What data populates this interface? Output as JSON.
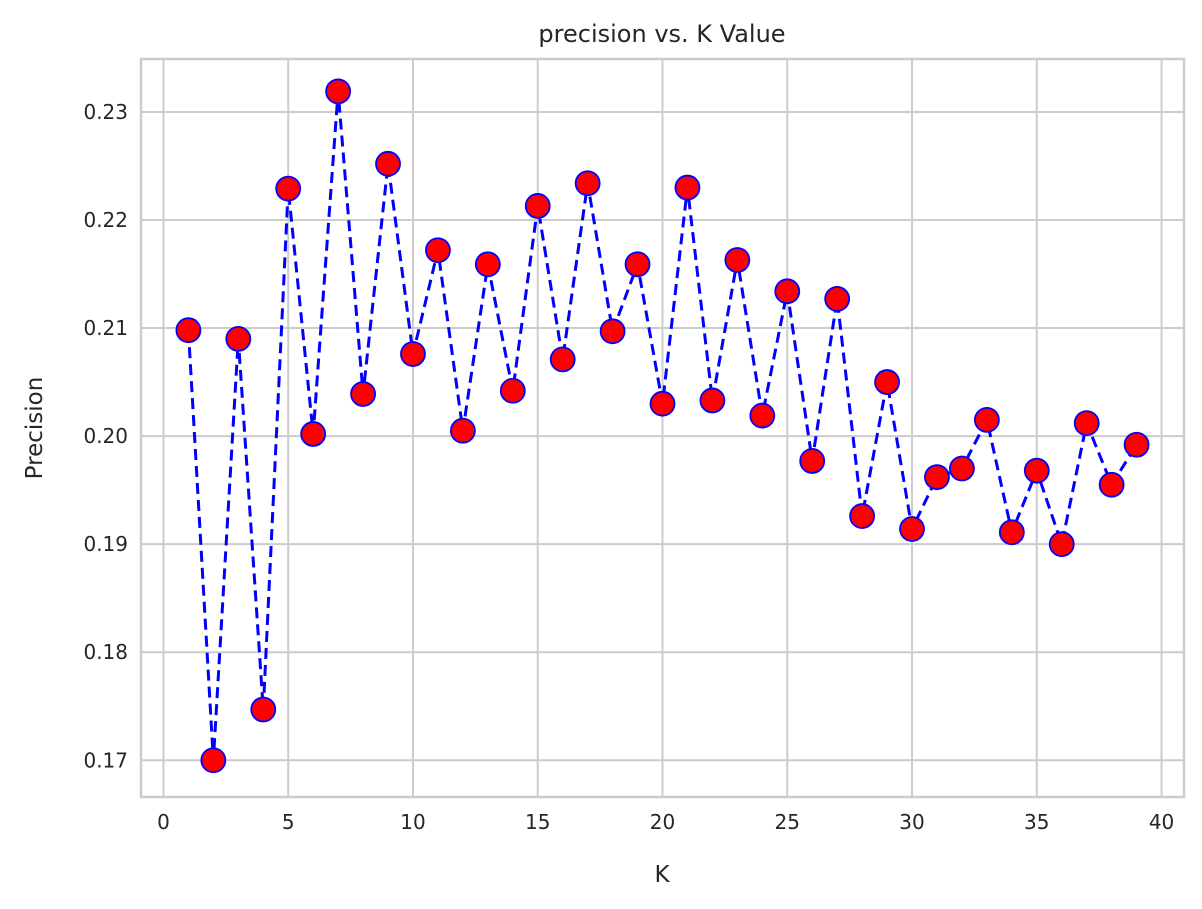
{
  "chart_data": {
    "type": "line",
    "title": "precision vs. K Value",
    "xlabel": "K",
    "ylabel": "Precision",
    "xlim": [
      -0.9,
      40.9
    ],
    "ylim": [
      0.1666,
      0.2349
    ],
    "xticks": [
      0,
      5,
      10,
      15,
      20,
      25,
      30,
      35,
      40
    ],
    "yticks": [
      0.17,
      0.18,
      0.19,
      0.2,
      0.21,
      0.22,
      0.23
    ],
    "ytick_labels": [
      "0.17",
      "0.18",
      "0.19",
      "0.20",
      "0.21",
      "0.22",
      "0.23"
    ],
    "grid": true,
    "line_style": "dashed",
    "line_color": "#0000ff",
    "marker_face_color": "#ff0000",
    "marker_edge_color": "#0000ff",
    "x": [
      1,
      2,
      3,
      4,
      5,
      6,
      7,
      8,
      9,
      10,
      11,
      12,
      13,
      14,
      15,
      16,
      17,
      18,
      19,
      20,
      21,
      22,
      23,
      24,
      25,
      26,
      27,
      28,
      29,
      30,
      31,
      32,
      33,
      34,
      35,
      36,
      37,
      38,
      39
    ],
    "y": [
      0.2098,
      0.17,
      0.209,
      0.1747,
      0.2229,
      0.2002,
      0.2319,
      0.2039,
      0.2252,
      0.2076,
      0.2172,
      0.2005,
      0.2159,
      0.2042,
      0.2213,
      0.2071,
      0.2234,
      0.2097,
      0.2159,
      0.203,
      0.223,
      0.2033,
      0.2163,
      0.2019,
      0.2134,
      0.1977,
      0.2127,
      0.1926,
      0.205,
      0.1914,
      0.1962,
      0.197,
      0.2015,
      0.1911,
      0.1968,
      0.19,
      0.2012,
      0.1955,
      0.1992
    ]
  }
}
